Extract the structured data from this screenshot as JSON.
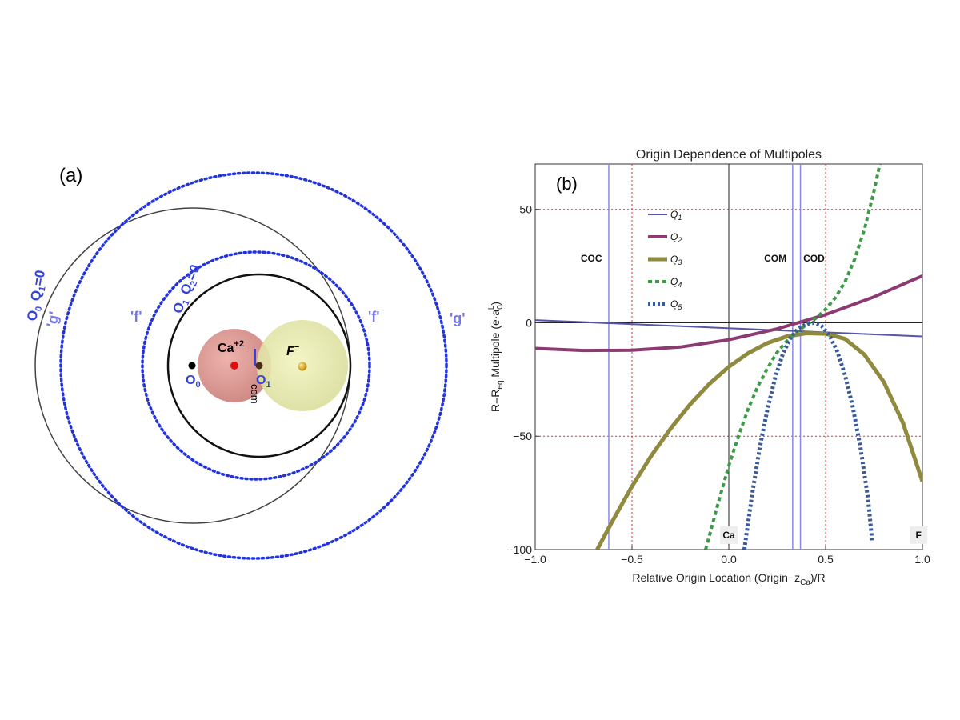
{
  "panel_a": {
    "label": "(a)",
    "ca_label": "Ca",
    "ca_charge": "+2",
    "f_label": "F",
    "f_charge": "−",
    "o0": "O",
    "o0_sub": "0",
    "o1": "O",
    "o1_sub": "1",
    "com": "com",
    "left_outer_label": {
      "o": "O",
      "o_sub": "0",
      "q": "Q",
      "q_sub": "1",
      "eq": "=0"
    },
    "left_inner_label": {
      "o": "O",
      "o_sub": "1",
      "q": "Q",
      "q_sub": "2",
      "eq": "=0"
    },
    "g_label": "'g'",
    "f_prime_label": "'f'",
    "colors": {
      "blue_text": "#3344dd",
      "light_blue_text": "#7777ee",
      "dotted_circle": "#2233dd",
      "ca_sphere": "#d9908a",
      "f_sphere": "#e3e8a8"
    }
  },
  "chart_data": {
    "type": "line",
    "title": "Origin Dependence of Multipoles",
    "panel_label": "(b)",
    "xlabel": "Relative Origin Location  (Origin−z",
    "xlabel_sub": "Ca",
    "xlabel_end": ")/R",
    "ylabel": "R=R",
    "ylabel_sub": "eq",
    "ylabel_mid": " Multipole  (e·a",
    "ylabel_sub2": "0",
    "ylabel_sup": "L",
    "ylabel_end": ")",
    "xlim": [
      -1.0,
      1.0
    ],
    "ylim": [
      -100,
      70
    ],
    "xticks": [
      -1.0,
      -0.5,
      0.0,
      0.5,
      1.0
    ],
    "xtick_labels": [
      "−1.0",
      "−0.5",
      "0.0",
      "0.5",
      "1.0"
    ],
    "yticks": [
      -100,
      -50,
      0,
      50
    ],
    "ytick_labels": [
      "−100",
      "−50",
      "0",
      "50"
    ],
    "grid": "red dotted",
    "legend_position": "top-left",
    "series": [
      {
        "name": "Q",
        "sub": "1",
        "color": "#5555aa",
        "width": 2,
        "dash": "",
        "x": [
          -1.0,
          1.0
        ],
        "y": [
          1.2,
          -6.0
        ]
      },
      {
        "name": "Q",
        "sub": "2",
        "color": "#8b3a72",
        "width": 4,
        "dash": "",
        "x": [
          -1.0,
          -0.75,
          -0.5,
          -0.25,
          0.0,
          0.25,
          0.5,
          0.75,
          1.0
        ],
        "y": [
          -11.3,
          -12.2,
          -12.1,
          -10.7,
          -7.5,
          -2.7,
          3.6,
          11.4,
          20.7
        ]
      },
      {
        "name": "Q",
        "sub": "3",
        "color": "#8f8a3e",
        "width": 5,
        "dash": "",
        "x": [
          -0.68,
          -0.6,
          -0.5,
          -0.4,
          -0.3,
          -0.2,
          -0.1,
          0.0,
          0.1,
          0.2,
          0.3,
          0.4,
          0.5,
          0.6,
          0.7,
          0.8,
          0.9,
          1.0
        ],
        "y": [
          -100.0,
          -87.3,
          -72.1,
          -58.6,
          -46.6,
          -36.0,
          -26.9,
          -19.4,
          -13.4,
          -8.9,
          -6.0,
          -4.6,
          -4.8,
          -7.1,
          -14.0,
          -26.0,
          -44.2,
          -70.0
        ]
      },
      {
        "name": "Q",
        "sub": "4",
        "color": "#3d9b48",
        "width": 4,
        "dash": "5,4",
        "x": [
          -0.12,
          -0.05,
          0.0,
          0.05,
          0.1,
          0.15,
          0.2,
          0.25,
          0.3,
          0.35,
          0.4,
          0.45,
          0.5,
          0.55,
          0.6,
          0.65,
          0.7,
          0.75,
          0.78
        ],
        "y": [
          -100.0,
          -78.0,
          -63.0,
          -50.0,
          -38.0,
          -28.0,
          -20.0,
          -13.0,
          -8.0,
          -4.0,
          -1.0,
          2.0,
          6.0,
          11.0,
          18.0,
          28.0,
          41.0,
          58.0,
          70.0
        ]
      },
      {
        "name": "Q",
        "sub": "5",
        "color": "#3a5a99",
        "width": 5,
        "dash": "3,3",
        "x": [
          0.08,
          0.12,
          0.16,
          0.2,
          0.24,
          0.28,
          0.32,
          0.36,
          0.4,
          0.44,
          0.48,
          0.52,
          0.56,
          0.6,
          0.64,
          0.68,
          0.72,
          0.74
        ],
        "y": [
          -100.0,
          -76.0,
          -55.0,
          -38.0,
          -24.0,
          -13.5,
          -6.5,
          -2.5,
          -0.5,
          0.0,
          -1.5,
          -5.5,
          -12.5,
          -23.0,
          -37.0,
          -55.0,
          -78.0,
          -96.0
        ]
      }
    ],
    "vlines_blue": [
      -0.62,
      0.33,
      0.37
    ],
    "vline_black": 0.0,
    "annotations": [
      {
        "text": "COC",
        "x": -0.71,
        "y": 27
      },
      {
        "text": "COM",
        "x": 0.24,
        "y": 27
      },
      {
        "text": "COD",
        "x": 0.44,
        "y": 27
      },
      {
        "text": "Ca",
        "x": 0.0,
        "y": -95
      },
      {
        "text": "F",
        "x": 0.98,
        "y": -95
      }
    ]
  }
}
